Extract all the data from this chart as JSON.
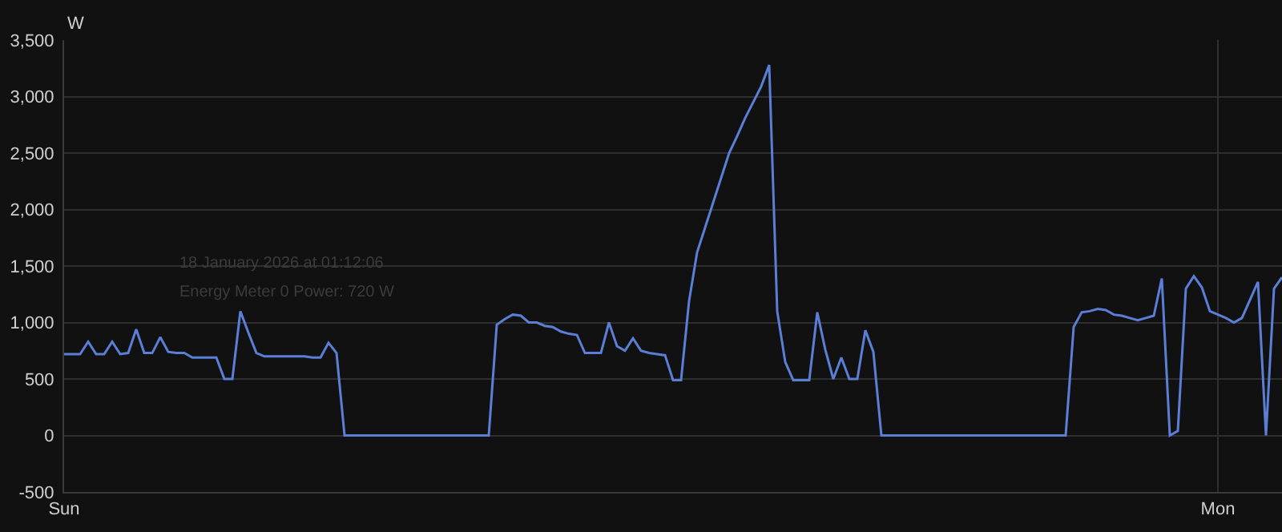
{
  "chart_data": {
    "type": "line",
    "ylabel": "W",
    "annotations": [
      "18 January 2026 at 01:12:06",
      "Energy Meter 0 Power: 720 W"
    ],
    "categories": [
      "Sun",
      null,
      null,
      null,
      null,
      null,
      null,
      null,
      null,
      null,
      null,
      null,
      null,
      null,
      null,
      null,
      null,
      null,
      null,
      null,
      null,
      null,
      null,
      null,
      null,
      null,
      null,
      null,
      null,
      null,
      null,
      null,
      null,
      null,
      null,
      null,
      null,
      null,
      null,
      null,
      null,
      null,
      null,
      null,
      null,
      null,
      null,
      null,
      null,
      null,
      null,
      null,
      null,
      null,
      null,
      null,
      null,
      null,
      null,
      null,
      null,
      null,
      null,
      null,
      null,
      null,
      null,
      null,
      null,
      null,
      null,
      null,
      null,
      null,
      null,
      null,
      null,
      null,
      null,
      null,
      null,
      null,
      null,
      null,
      null,
      null,
      null,
      null,
      null,
      null,
      null,
      null,
      null,
      null,
      null,
      null,
      null,
      null,
      null,
      null,
      null,
      null,
      null,
      null,
      null,
      null,
      null,
      null,
      null,
      null,
      null,
      null,
      null,
      null,
      null,
      null,
      null,
      null,
      null,
      null,
      null,
      null,
      null,
      null,
      null,
      null,
      null,
      null,
      null,
      null,
      null,
      null,
      null,
      null,
      null,
      null,
      null,
      null,
      null,
      null,
      null,
      null,
      null,
      null,
      "Mon",
      null,
      null,
      null,
      null,
      null,
      null,
      null,
      null
    ],
    "ylim": [
      -500,
      3500
    ],
    "yticks": [
      {
        "value": -500,
        "label": "-500"
      },
      0,
      {
        "value": 500,
        "label": "500"
      },
      {
        "value": 1000,
        "label": "1,000"
      },
      {
        "value": 1500,
        "label": "1,500"
      },
      {
        "value": 2000,
        "label": "2,000"
      },
      {
        "value": 2500,
        "label": "2,500"
      },
      {
        "value": 3000,
        "label": "3,000"
      },
      {
        "value": 3500,
        "label": "3,500"
      }
    ],
    "grid": true,
    "marker": "none",
    "line_style": "solid",
    "series": [
      {
        "color": "#5b7fd6",
        "values": [
          720,
          720,
          720,
          830,
          720,
          720,
          830,
          720,
          730,
          940,
          730,
          730,
          870,
          740,
          730,
          730,
          690,
          690,
          690,
          690,
          500,
          500,
          1100,
          910,
          730,
          700,
          700,
          700,
          700,
          700,
          700,
          690,
          690,
          820,
          730,
          0,
          0,
          0,
          0,
          0,
          0,
          0,
          0,
          0,
          0,
          0,
          0,
          0,
          0,
          0,
          0,
          0,
          0,
          0,
          980,
          1030,
          1070,
          1060,
          1000,
          1000,
          970,
          960,
          920,
          900,
          890,
          730,
          730,
          730,
          1000,
          790,
          750,
          860,
          750,
          730,
          720,
          710,
          490,
          490,
          1190,
          1620,
          1840,
          2060,
          2280,
          2500,
          2650,
          2810,
          2950,
          3090,
          3280,
          1100,
          650,
          490,
          490,
          490,
          1090,
          760,
          500,
          690,
          500,
          500,
          930,
          740,
          0,
          0,
          0,
          0,
          0,
          0,
          0,
          0,
          0,
          0,
          0,
          0,
          0,
          0,
          0,
          0,
          0,
          0,
          0,
          0,
          0,
          0,
          0,
          0,
          960,
          1090,
          1100,
          1120,
          1110,
          1070,
          1060,
          1040,
          1020,
          1040,
          1060,
          1390,
          0,
          40,
          1300,
          1410,
          1310,
          1100,
          1070,
          1040,
          1000,
          1040,
          1200,
          1360,
          0,
          1300,
          1400
        ]
      }
    ]
  }
}
